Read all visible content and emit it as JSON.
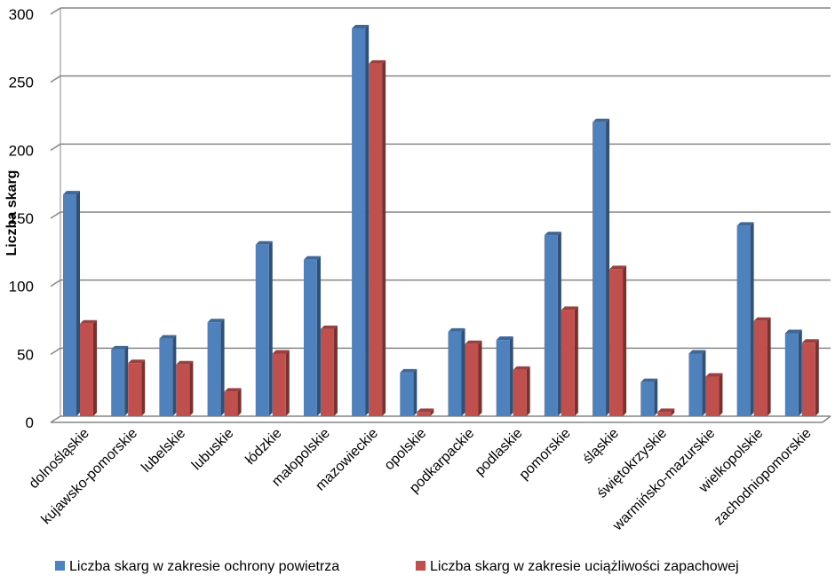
{
  "chart_data": {
    "type": "bar",
    "ylabel": "Liczba skarg",
    "ylim": [
      0,
      300
    ],
    "yticks": [
      0,
      50,
      100,
      150,
      200,
      250,
      300
    ],
    "grid": true,
    "legend_position": "bottom",
    "categories": [
      "dolnośląskie",
      "kujawsko-pomorskie",
      "lubelskie",
      "lubuskie",
      "łódzkie",
      "małopolskie",
      "mazowieckie",
      "opolskie",
      "podkarpackie",
      "podlaskie",
      "pomorskie",
      "śląskie",
      "świętokrzyskie",
      "warmińsko-mazurskie",
      "wielkopolskie",
      "zachodniopomorskie"
    ],
    "series": [
      {
        "name": "Liczba skarg w zakresie ochrony powietrza",
        "color": "#4F81BD",
        "values": [
          163,
          49,
          57,
          69,
          126,
          115,
          285,
          32,
          62,
          56,
          133,
          216,
          25,
          46,
          140,
          61
        ]
      },
      {
        "name": "Liczba skarg w zakresie uciążliwości zapachowej",
        "color": "#C0504D",
        "values": [
          68,
          39,
          38,
          18,
          46,
          64,
          259,
          3,
          53,
          34,
          78,
          108,
          3,
          29,
          70,
          54
        ]
      }
    ]
  }
}
